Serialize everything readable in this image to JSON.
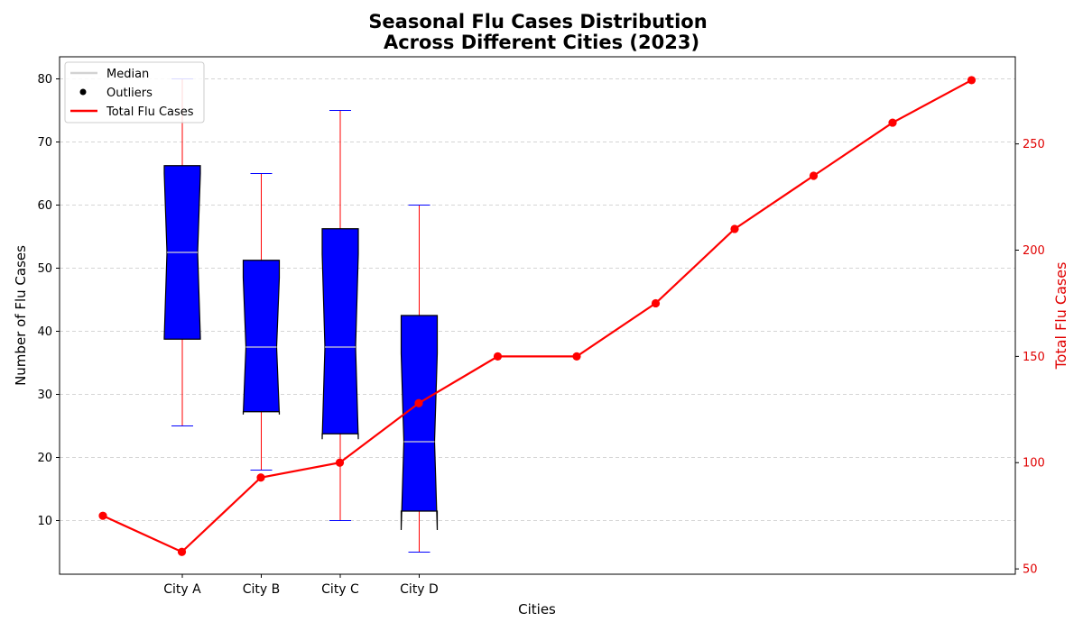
{
  "chart_data": {
    "type": "box+line",
    "title_line1": "Seasonal Flu Cases Distribution",
    "title_line2": "Across Different Cities (2023)",
    "xlabel": "Cities",
    "ylabel_left": "Number of Flu Cases",
    "ylabel_right": "Total Flu Cases",
    "categories": [
      "City A",
      "City B",
      "City C",
      "City D"
    ],
    "ylim_left": [
      1.5,
      83.5
    ],
    "yticks_left": [
      10,
      20,
      30,
      40,
      50,
      60,
      70,
      80
    ],
    "ylim_right": [
      47.5,
      291
    ],
    "yticks_right": [
      50,
      100,
      150,
      200,
      250
    ],
    "grid": true,
    "boxes": [
      {
        "category": "City A",
        "whisker_low": 25,
        "q1": 38.75,
        "median": 52.5,
        "q3": 66.25,
        "whisker_high": 80,
        "notch_low": 39,
        "notch_high": 65
      },
      {
        "category": "City B",
        "whisker_low": 18,
        "q1": 27.25,
        "median": 37.5,
        "q3": 51.25,
        "whisker_high": 65,
        "notch_low": 26.8,
        "notch_high": 48.5
      },
      {
        "category": "City C",
        "whisker_low": 10,
        "q1": 23.75,
        "median": 37.5,
        "q3": 56.25,
        "whisker_high": 75,
        "notch_low": 22.9,
        "notch_high": 52.2
      },
      {
        "category": "City D",
        "whisker_low": 5,
        "q1": 11.5,
        "median": 22.5,
        "q3": 42.5,
        "whisker_high": 60,
        "notch_low": 8.5,
        "notch_high": 36.5
      }
    ],
    "line_series": {
      "name": "Total Flu Cases",
      "x": [
        0,
        1,
        2,
        3,
        4,
        5,
        6,
        7,
        8,
        9,
        10,
        11
      ],
      "values": [
        75,
        58,
        93,
        100,
        128,
        150,
        150,
        175,
        210,
        235,
        260,
        280
      ]
    },
    "legend": {
      "position": "top-left",
      "entries": [
        "Median",
        "Outliers",
        "Total Flu Cases"
      ]
    },
    "colors": {
      "box_fill": "#0000ff",
      "box_edge": "#000000",
      "whisker": "#ff0000",
      "cap": "#0000ff",
      "median": "#d3d3d3",
      "line": "#ff0000",
      "outlier": "#000000",
      "grid": "#c8c8c8"
    }
  }
}
